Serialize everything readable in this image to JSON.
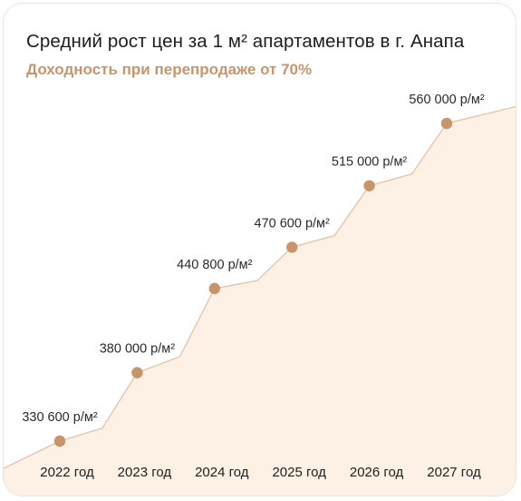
{
  "header": {
    "title": "Средний рост цен за 1 м² апартаментов в г. Анапа",
    "subtitle": "Доходность при перепродаже от 70%"
  },
  "colors": {
    "accent": "#c6956b",
    "marker": "#c8946a",
    "area_fill": "#fdf0e4",
    "line": "#e2c3a5"
  },
  "chart_data": {
    "type": "area",
    "title": "Средний рост цен за 1 м² апартаментов в г. Анапа",
    "subtitle": "Доходность при перепродаже от 70%",
    "categories": [
      "2022 год",
      "2023 год",
      "2024 год",
      "2025 год",
      "2026 год",
      "2027 год"
    ],
    "series": [
      {
        "values": [
          330600,
          380000,
          440800,
          470600,
          515000,
          560000
        ],
        "labels": [
          "330 600 р/м²",
          "380 000 р/м²",
          "440 800 р/м²",
          "470 600 р/м²",
          "515 000 р/м²",
          "560 000 р/м²"
        ]
      }
    ],
    "xlabel": "",
    "ylabel": "",
    "grid": false,
    "legend": "none"
  }
}
